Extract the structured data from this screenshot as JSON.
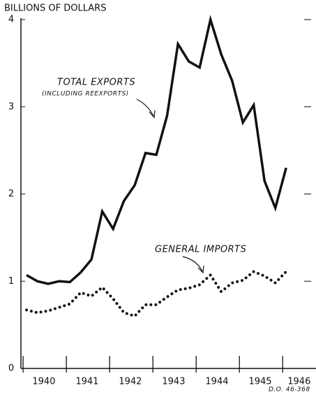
{
  "chart_data": {
    "type": "line",
    "ylabel": "BILLIONS OF DOLLARS",
    "x": [
      1940,
      1940.25,
      1940.5,
      1940.75,
      1941,
      1941.25,
      1941.5,
      1941.75,
      1942,
      1942.25,
      1942.5,
      1942.75,
      1943,
      1943.25,
      1943.5,
      1943.75,
      1944,
      1944.25,
      1944.5,
      1944.75,
      1945,
      1945.25,
      1945.5,
      1945.75,
      1946
    ],
    "series": [
      {
        "name": "TOTAL EXPORTS",
        "style": "solid",
        "color": "#111111",
        "values": [
          1.07,
          1.0,
          0.97,
          1.0,
          0.99,
          1.1,
          1.25,
          1.8,
          1.6,
          1.92,
          2.1,
          2.47,
          2.45,
          2.9,
          3.72,
          3.52,
          3.45,
          4.0,
          3.6,
          3.3,
          2.82,
          3.02,
          2.15,
          1.84,
          2.3
        ]
      },
      {
        "name": "GENERAL IMPORTS",
        "style": "dotted",
        "color": "#111111",
        "values": [
          0.67,
          0.64,
          0.66,
          0.7,
          0.74,
          0.87,
          0.83,
          0.93,
          0.8,
          0.64,
          0.6,
          0.73,
          0.73,
          0.82,
          0.9,
          0.92,
          0.96,
          1.07,
          0.88,
          0.98,
          1.01,
          1.11,
          1.06,
          0.98,
          1.11
        ]
      }
    ],
    "annotations": [
      "TOTAL EXPORTS",
      "(INCLUDING REEXPORTS)",
      "GENERAL IMPORTS",
      "D.O. 46-368"
    ],
    "xlim": [
      1939.87,
      1946.69
    ],
    "xticks": [
      {
        "value": 1940.4,
        "label": "1940"
      },
      {
        "value": 1941.4,
        "label": "1941"
      },
      {
        "value": 1942.4,
        "label": "1942"
      },
      {
        "value": 1943.4,
        "label": "1943"
      },
      {
        "value": 1944.4,
        "label": "1944"
      },
      {
        "value": 1945.4,
        "label": "1945"
      },
      {
        "value": 1946.3,
        "label": "1946"
      }
    ],
    "year_ticks": [
      1939.92,
      1940.92,
      1941.92,
      1942.92,
      1943.92,
      1944.92,
      1945.92
    ],
    "ylim": [
      0,
      4
    ],
    "yticks": [
      0,
      1,
      2,
      3,
      4
    ]
  }
}
